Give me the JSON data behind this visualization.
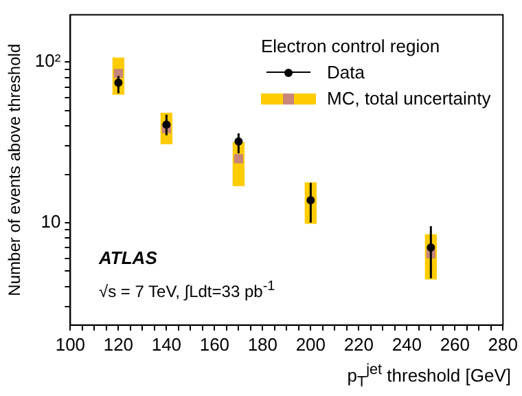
{
  "chart_data": {
    "type": "scatter",
    "ylabel": "Number of events above threshold",
    "xlabel": "p$_{T}$$^{jet}$ threshold [GeV]",
    "legend_title": "Electron control region",
    "legend": "top right",
    "log": "y",
    "grid": false,
    "xlim": [
      100,
      280
    ],
    "xticks": [
      100,
      {
        "value": 105,
        "label": null
      },
      {
        "value": 110,
        "label": null
      },
      {
        "value": 115,
        "label": null
      },
      120,
      {
        "value": 125,
        "label": null
      },
      {
        "value": 130,
        "label": null
      },
      {
        "value": 135,
        "label": null
      },
      140,
      {
        "value": 145,
        "label": null
      },
      {
        "value": 150,
        "label": null
      },
      {
        "value": 155,
        "label": null
      },
      160,
      {
        "value": 165,
        "label": null
      },
      {
        "value": 170,
        "label": null
      },
      {
        "value": 175,
        "label": null
      },
      180,
      {
        "value": 185,
        "label": null
      },
      {
        "value": 190,
        "label": null
      },
      {
        "value": 195,
        "label": null
      },
      200,
      {
        "value": 205,
        "label": null
      },
      {
        "value": 210,
        "label": null
      },
      {
        "value": 215,
        "label": null
      },
      220,
      {
        "value": 225,
        "label": null
      },
      {
        "value": 230,
        "label": null
      },
      {
        "value": 235,
        "label": null
      },
      240,
      {
        "value": 245,
        "label": null
      },
      {
        "value": 250,
        "label": null
      },
      {
        "value": 255,
        "label": null
      },
      260,
      {
        "value": 265,
        "label": null
      },
      {
        "value": 270,
        "label": null
      },
      {
        "value": 275,
        "label": null
      },
      280
    ],
    "ylim": [
      2.3,
      197
    ],
    "yticks": [
      {
        "value": 3,
        "label": null
      },
      {
        "value": 4,
        "label": null
      },
      {
        "value": 5,
        "label": null
      },
      {
        "value": 6,
        "label": null
      },
      {
        "value": 7,
        "label": null
      },
      {
        "value": 8,
        "label": null
      },
      {
        "value": 9,
        "label": null
      },
      10,
      {
        "value": 20,
        "label": null
      },
      {
        "value": 30,
        "label": null
      },
      {
        "value": 40,
        "label": null
      },
      {
        "value": 50,
        "label": null
      },
      {
        "value": 60,
        "label": null
      },
      {
        "value": 70,
        "label": null
      },
      {
        "value": 80,
        "label": null
      },
      {
        "value": 90,
        "label": null
      },
      {
        "value": 100,
        "label": "10²"
      }
    ],
    "x": [
      120,
      140,
      170,
      200,
      250
    ],
    "series": [
      {
        "name": "Data",
        "color": "#000000",
        "marker": "circle",
        "values": [
          74.5,
          40.8,
          32,
          13.8,
          7.0
        ],
        "errors": [
          [
            64,
            82
          ],
          [
            35,
            47
          ],
          [
            27,
            36
          ],
          [
            10,
            17.7
          ],
          [
            4.5,
            9.5
          ]
        ]
      },
      {
        "name": "MC, total uncertainty",
        "type": "bar",
        "color": "#ffcc00",
        "base": [
          63,
          31,
          17,
          9.9,
          4.45
        ],
        "values": [
          43,
          17,
          14.6,
          7.8,
          3.95
        ]
      },
      {
        "type": "scatter",
        "color": "#c8857a",
        "marker": "square",
        "values": [
          85,
          38.5,
          25,
          null,
          6.4
        ]
      }
    ],
    "annotations": [
      "ATLAS",
      "√s = 7 TeV,  ∫Ldt=33 pb$^{-1}$"
    ]
  }
}
